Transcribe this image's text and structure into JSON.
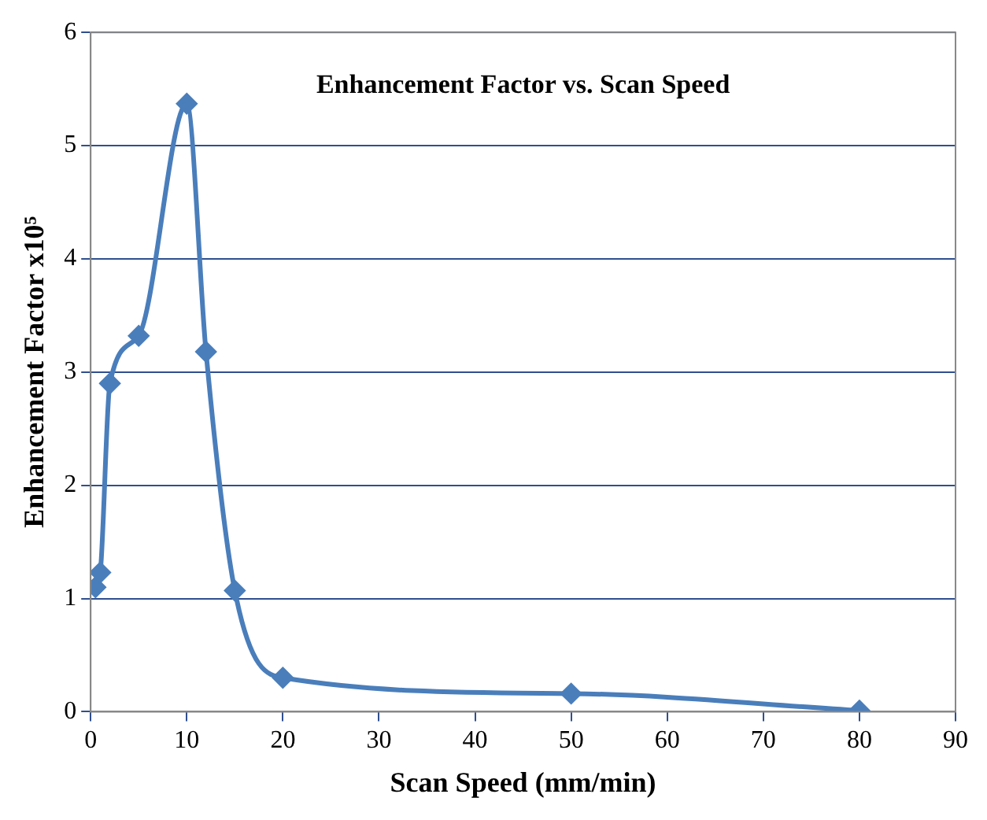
{
  "chart_data": {
    "type": "line",
    "title": "Enhancement Factor vs. Scan Speed",
    "xlabel": "Scan Speed (mm/min)",
    "ylabel": "Enhancement Factor x10⁵",
    "x": [
      0.5,
      1,
      2,
      5,
      10,
      12,
      15,
      20,
      50,
      80
    ],
    "series": [
      {
        "color": "#4a7ebb",
        "values": [
          1.1,
          1.23,
          2.9,
          3.32,
          5.37,
          3.18,
          1.07,
          0.3,
          0.16,
          0.01
        ]
      }
    ],
    "xlim": [
      0,
      90
    ],
    "xticks": [
      0,
      10,
      20,
      30,
      40,
      50,
      60,
      70,
      80,
      90
    ],
    "ylim": [
      0,
      6
    ],
    "yticks": [
      0,
      1,
      2,
      3,
      4,
      5,
      6
    ],
    "grid": "y",
    "legend": false,
    "marker": "diamond",
    "line_style": "solid"
  }
}
